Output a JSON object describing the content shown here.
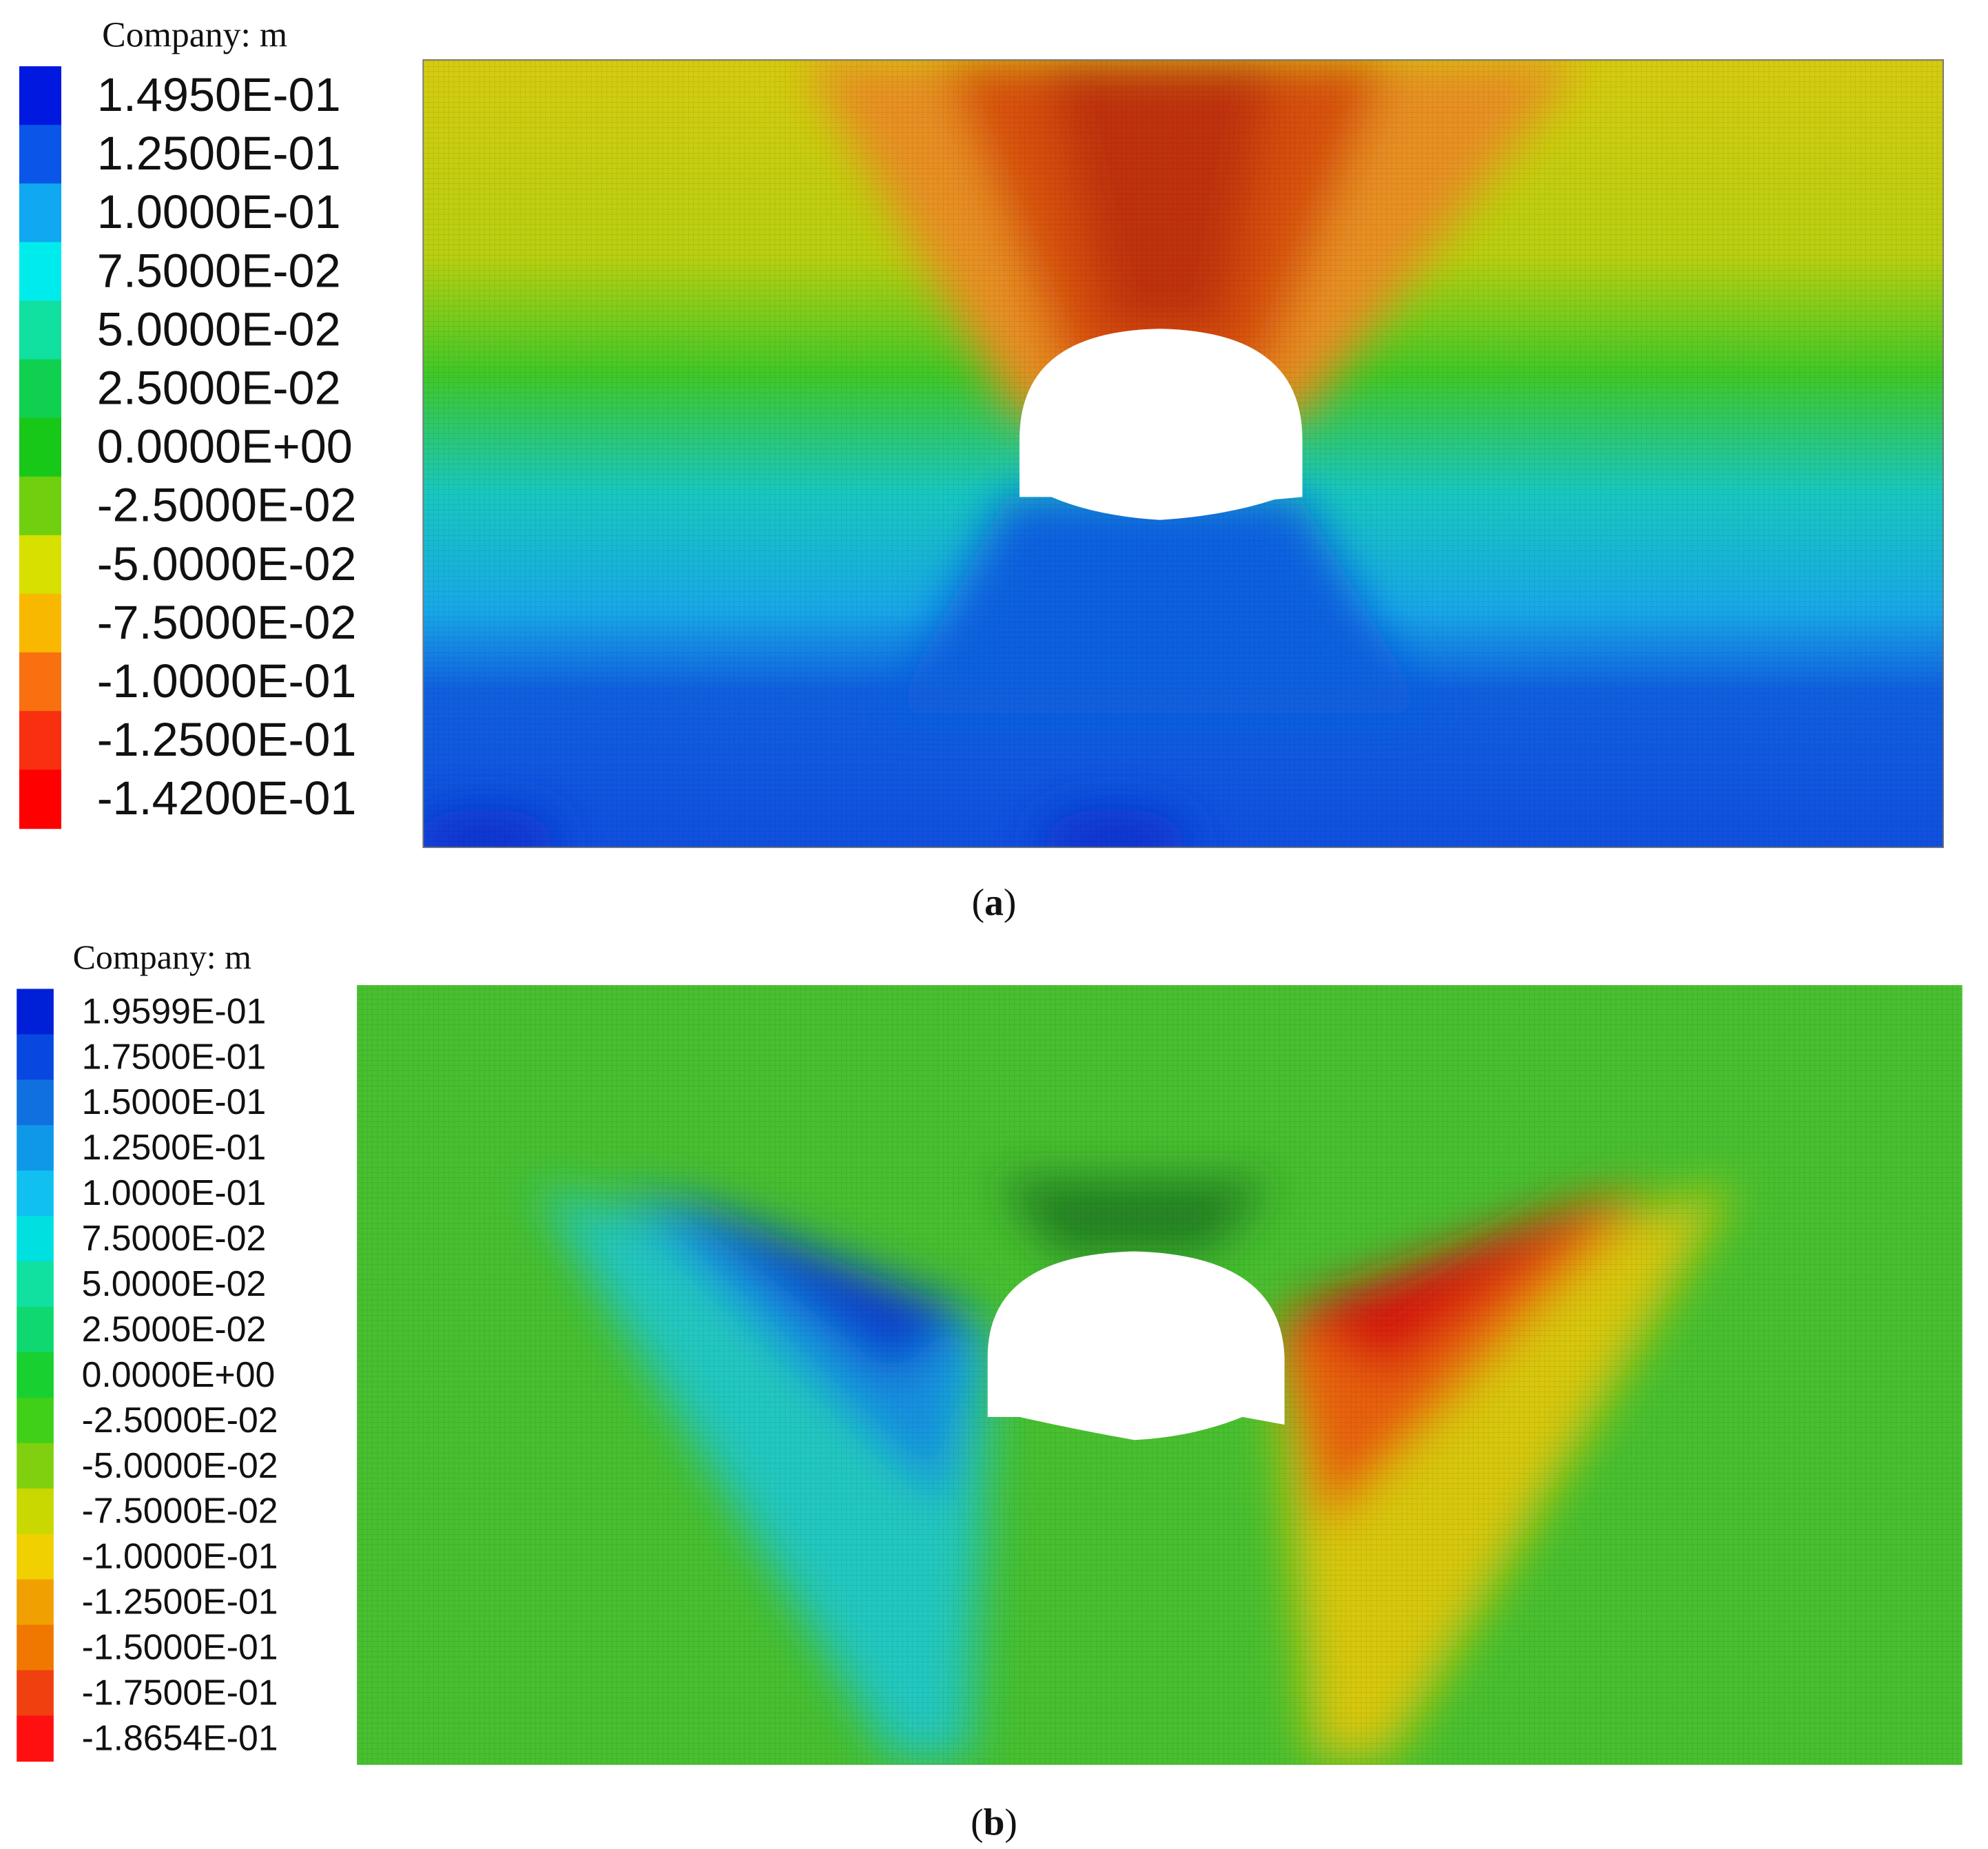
{
  "panels": [
    {
      "legend_title": "Company: m",
      "legend_labels": [
        "1.4950E-01",
        "1.2500E-01",
        "1.0000E-01",
        "7.5000E-02",
        "5.0000E-02",
        "2.5000E-02",
        "0.0000E+00",
        "-2.5000E-02",
        "-5.0000E-02",
        "-7.5000E-02",
        "-1.0000E-01",
        "-1.2500E-01",
        "-1.4200E-01"
      ],
      "legend_colors": [
        "#0018e0",
        "#0a56e8",
        "#10a8f0",
        "#00ecec",
        "#10e0a0",
        "#10d050",
        "#18c818",
        "#70d010",
        "#d8e000",
        "#f8b800",
        "#f87010",
        "#f83010",
        "#ff0000"
      ],
      "caption_letter": "a"
    },
    {
      "legend_title": "Company: m",
      "legend_labels": [
        "1.9599E-01",
        "1.7500E-01",
        "1.5000E-01",
        "1.2500E-01",
        "1.0000E-01",
        "7.5000E-02",
        "5.0000E-02",
        "2.5000E-02",
        "0.0000E+00",
        "-2.5000E-02",
        "-5.0000E-02",
        "-7.5000E-02",
        "-1.0000E-01",
        "-1.2500E-01",
        "-1.5000E-01",
        "-1.7500E-01",
        "-1.8654E-01"
      ],
      "legend_colors": [
        "#0020d8",
        "#0848e0",
        "#1070e0",
        "#1098e8",
        "#10c0f0",
        "#00e0e0",
        "#10e0a0",
        "#10d870",
        "#18d030",
        "#40d018",
        "#80d010",
        "#c8d800",
        "#f0d000",
        "#f0a000",
        "#f07800",
        "#f04010",
        "#ff1010"
      ],
      "caption_letter": "b"
    }
  ]
}
